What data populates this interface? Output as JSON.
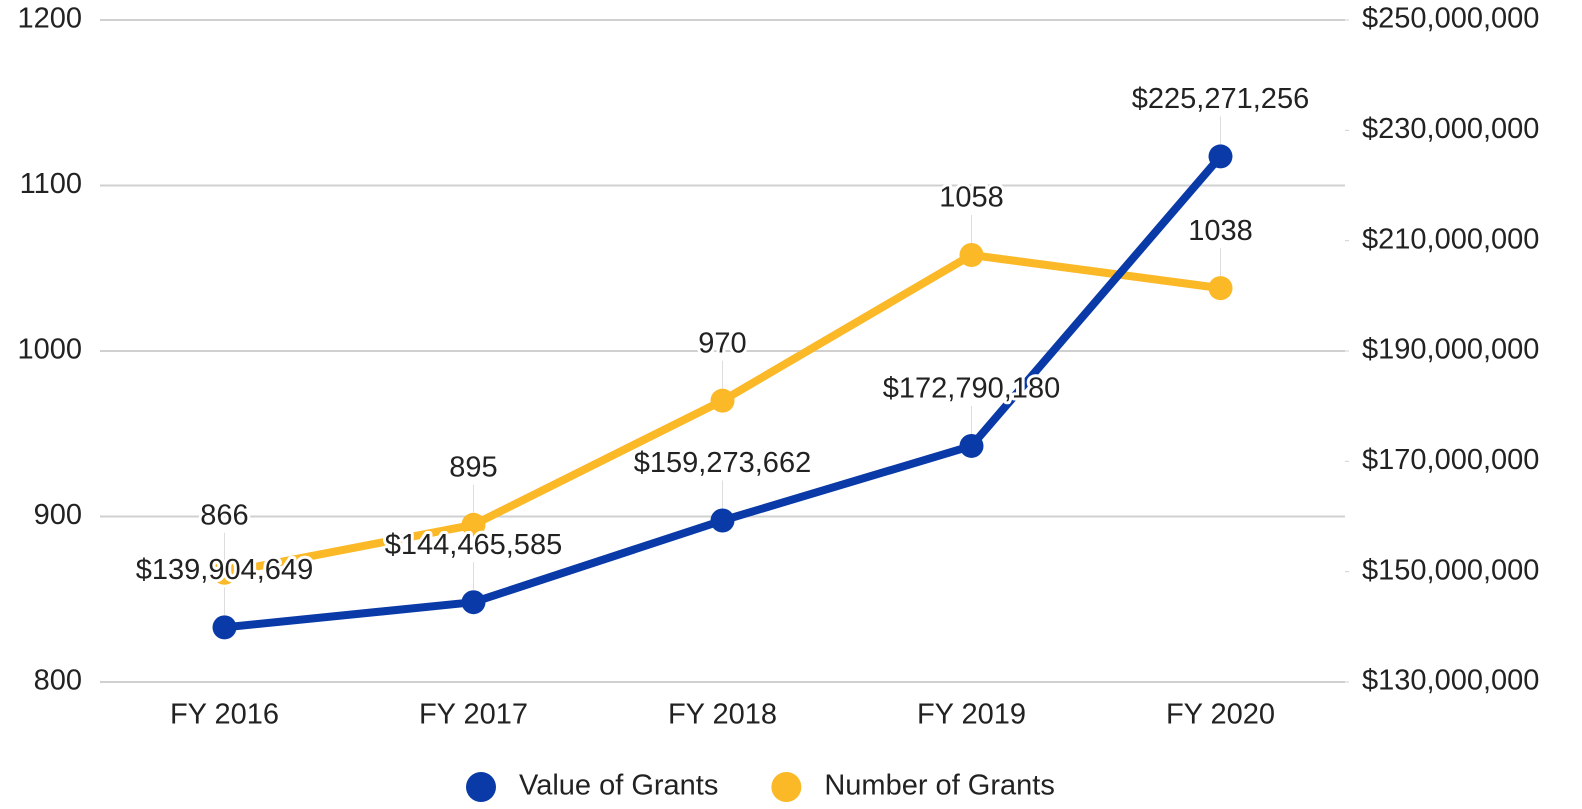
{
  "chart_data": {
    "type": "line",
    "categories": [
      "FY 2016",
      "FY 2017",
      "FY 2018",
      "FY 2019",
      "FY 2020"
    ],
    "series": [
      {
        "name": "Value of Grants",
        "color": "#0a3aa8",
        "axis": "y2",
        "values": [
          139904649,
          144465585,
          159273662,
          172790180,
          225271256
        ],
        "value_labels": [
          "$139,904,649",
          "$144,465,585",
          "$159,273,662",
          "$172,790,180",
          "$225,271,256"
        ]
      },
      {
        "name": "Number of Grants",
        "color": "#fbb827",
        "values": [
          866,
          895,
          970,
          1058,
          1038
        ]
      }
    ],
    "ylim": [
      800,
      1200
    ],
    "yticks": [
      800,
      900,
      1000,
      1100,
      1200
    ],
    "y2lim": [
      130000000,
      250000000
    ],
    "y2ticks": [
      {
        "value": 130000000,
        "label": "$130,000,000"
      },
      {
        "value": 150000000,
        "label": "$150,000,000"
      },
      {
        "value": 170000000,
        "label": "$170,000,000"
      },
      {
        "value": 190000000,
        "label": "$190,000,000"
      },
      {
        "value": 210000000,
        "label": "$210,000,000"
      },
      {
        "value": 230000000,
        "label": "$230,000,000"
      },
      {
        "value": 250000000,
        "label": "$250,000,000"
      }
    ],
    "grid": true,
    "legend": "bottom"
  }
}
